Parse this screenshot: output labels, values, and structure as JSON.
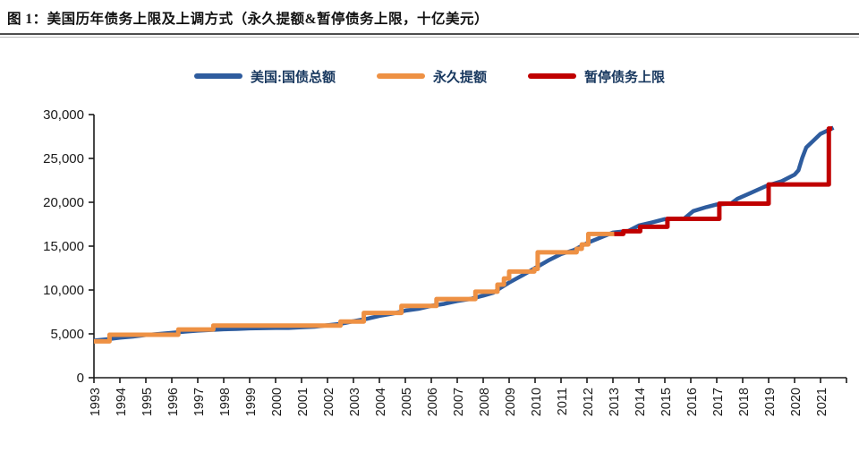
{
  "header": {
    "figure_label": "图 1：",
    "title": "图 1：美国历年债务上限及上调方式（永久提额&暂停债务上限，十亿美元）"
  },
  "colors": {
    "total_debt_blue": "#2e5c9e",
    "permanent_increase_orange": "#ee9144",
    "suspension_red": "#c00000",
    "axis": "#1a1a1a",
    "title_text": "#111111",
    "legend_text": "#17375e",
    "divider_dark": "#4d4d4d",
    "divider_light": "#bdbdbd"
  },
  "chart_data": {
    "type": "line",
    "title": "图 1：美国历年债务上限及上调方式（永久提额&暂停债务上限，十亿美元）",
    "unit": "十亿美元",
    "xlabel": "",
    "ylabel": "",
    "grid": false,
    "legend_position": "top-center",
    "ylim": [
      0,
      30000
    ],
    "x_range": [
      1993,
      2022
    ],
    "y_ticks": [
      0,
      5000,
      10000,
      15000,
      20000,
      25000,
      30000
    ],
    "y_tick_labels": [
      "0",
      "5,000",
      "10,000",
      "15,000",
      "20,000",
      "25,000",
      "30,000"
    ],
    "x_ticks": [
      1993,
      1994,
      1995,
      1996,
      1997,
      1998,
      1999,
      2000,
      2001,
      2002,
      2003,
      2004,
      2005,
      2006,
      2007,
      2008,
      2009,
      2010,
      2011,
      2012,
      2013,
      2014,
      2015,
      2016,
      2017,
      2018,
      2019,
      2020,
      2021
    ],
    "series": [
      {
        "id": "us-total-debt",
        "name": "美国:国债总额",
        "color": "#2e5c9e",
        "style": "line",
        "points": [
          [
            1993.0,
            4230
          ],
          [
            1993.5,
            4380
          ],
          [
            1994,
            4560
          ],
          [
            1994.5,
            4690
          ],
          [
            1995,
            4870
          ],
          [
            1995.5,
            4990
          ],
          [
            1996,
            5120
          ],
          [
            1996.5,
            5250
          ],
          [
            1997,
            5370
          ],
          [
            1997.5,
            5450
          ],
          [
            1998,
            5520
          ],
          [
            1998.5,
            5560
          ],
          [
            1999,
            5620
          ],
          [
            1999.5,
            5650
          ],
          [
            2000,
            5680
          ],
          [
            2000.5,
            5670
          ],
          [
            2001,
            5750
          ],
          [
            2001.5,
            5810
          ],
          [
            2002,
            5980
          ],
          [
            2002.5,
            6140
          ],
          [
            2003,
            6440
          ],
          [
            2003.5,
            6700
          ],
          [
            2004,
            7050
          ],
          [
            2004.5,
            7300
          ],
          [
            2005,
            7650
          ],
          [
            2005.5,
            7850
          ],
          [
            2006,
            8200
          ],
          [
            2006.5,
            8420
          ],
          [
            2007,
            8750
          ],
          [
            2007.5,
            8980
          ],
          [
            2008,
            9350
          ],
          [
            2008.4,
            9700
          ],
          [
            2008.7,
            10300
          ],
          [
            2009,
            10850
          ],
          [
            2009.5,
            11650
          ],
          [
            2010,
            12500
          ],
          [
            2010.5,
            13350
          ],
          [
            2011,
            14100
          ],
          [
            2011.5,
            14550
          ],
          [
            2012,
            15350
          ],
          [
            2012.5,
            15950
          ],
          [
            2013,
            16550
          ],
          [
            2013.6,
            16740
          ],
          [
            2014,
            17350
          ],
          [
            2014.5,
            17700
          ],
          [
            2015,
            18080
          ],
          [
            2015.75,
            18150
          ],
          [
            2016.1,
            19000
          ],
          [
            2016.6,
            19450
          ],
          [
            2017,
            19750
          ],
          [
            2017.55,
            19850
          ],
          [
            2017.8,
            20400
          ],
          [
            2018.3,
            21050
          ],
          [
            2018.9,
            21850
          ],
          [
            2019.5,
            22400
          ],
          [
            2020,
            23150
          ],
          [
            2020.15,
            23650
          ],
          [
            2020.3,
            25100
          ],
          [
            2020.45,
            26250
          ],
          [
            2020.7,
            26950
          ],
          [
            2021,
            27800
          ],
          [
            2021.25,
            28150
          ],
          [
            2021.5,
            28500
          ]
        ]
      },
      {
        "id": "permanent-increase",
        "name": "永久提额",
        "color": "#ee9144",
        "style": "step",
        "end": 2013.05,
        "points": [
          [
            1993.0,
            4145
          ],
          [
            1993.6,
            4900
          ],
          [
            1996.25,
            5500
          ],
          [
            1997.6,
            5950
          ],
          [
            2002.5,
            6400
          ],
          [
            2003.4,
            7384
          ],
          [
            2004.85,
            8184
          ],
          [
            2006.2,
            8965
          ],
          [
            2007.7,
            9815
          ],
          [
            2008.55,
            10615
          ],
          [
            2008.8,
            11315
          ],
          [
            2009.0,
            12104
          ],
          [
            2009.97,
            12394
          ],
          [
            2010.1,
            14294
          ],
          [
            2011.6,
            14694
          ],
          [
            2011.8,
            15194
          ],
          [
            2012.05,
            16394
          ]
        ]
      },
      {
        "id": "suspension",
        "name": "暂停债务上限",
        "color": "#c00000",
        "style": "step",
        "end": 2021.45,
        "points": [
          [
            2013.05,
            16394
          ],
          [
            2013.4,
            16699
          ],
          [
            2014.05,
            17212
          ],
          [
            2015.1,
            18113
          ],
          [
            2017.1,
            19847
          ],
          [
            2019.0,
            22030
          ],
          [
            2021.32,
            28400
          ]
        ]
      }
    ]
  }
}
